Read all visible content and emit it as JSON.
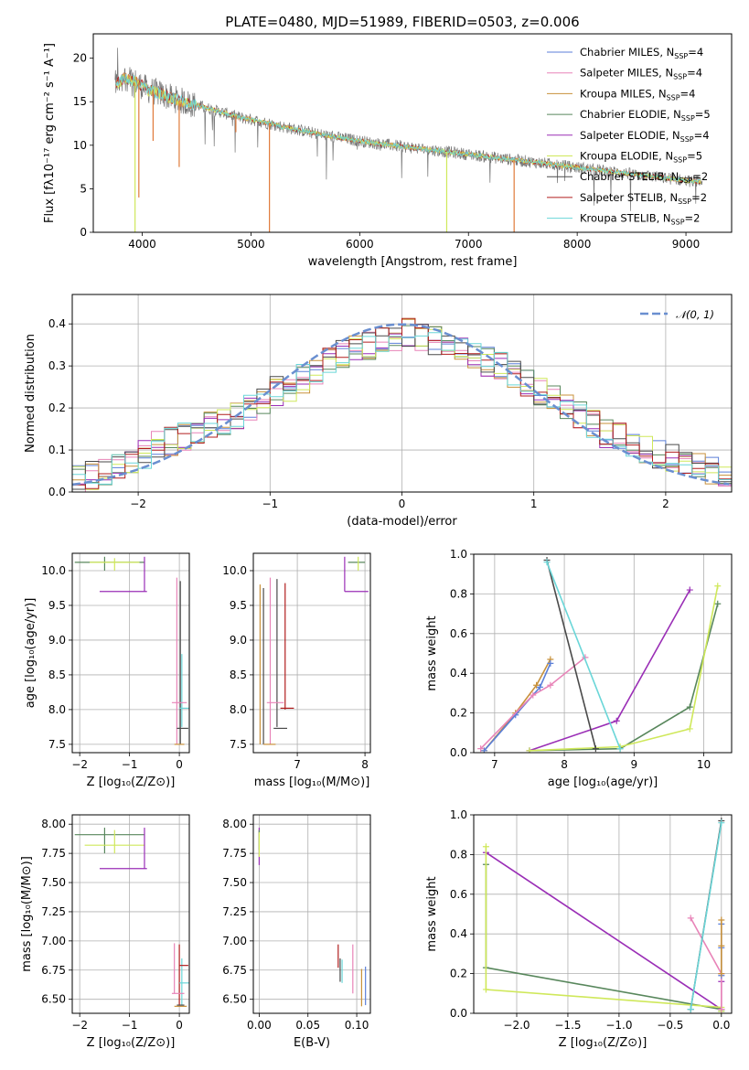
{
  "colors": {
    "Chabrier MILES": "#5b7fd8",
    "Salpeter MILES": "#e884b8",
    "Kroupa MILES": "#c8913a",
    "Chabrier ELODIE": "#58875c",
    "Salpeter ELODIE": "#9a2eb6",
    "Kroupa ELODIE": "#cfe85a",
    "Chabrier STELIB": "#4a4a4a",
    "Salpeter STELIB": "#b01e1e",
    "Kroupa STELIB": "#6ad6d8",
    "normal": "#6a8fd0",
    "gray_spec": "#777777",
    "orange_spec": "#e07a3a"
  },
  "chart_data": [
    {
      "id": "spectrum",
      "type": "line",
      "title": "PLATE=0480, MJD=51989, FIBERID=0503, z=0.006",
      "xlabel": "wavelength [Angstrom, rest frame]",
      "ylabel": "Flux [fλ10⁻¹⁷ erg cm⁻² s⁻¹ A⁻¹]",
      "xlim": [
        3550,
        9420
      ],
      "ylim": [
        0,
        22.8
      ],
      "xticks": [
        4000,
        5000,
        6000,
        7000,
        8000,
        9000
      ],
      "yticks": [
        0,
        5,
        10,
        15,
        20
      ],
      "grid": false,
      "legend_position": "top-right",
      "legend": [
        {
          "model": "Chabrier MILES",
          "label": "Chabrier MILES, N",
          "sub": "SSP",
          "tail": "=4"
        },
        {
          "model": "Salpeter MILES",
          "label": "Salpeter MILES, N",
          "sub": "SSP",
          "tail": "=4"
        },
        {
          "model": "Kroupa MILES",
          "label": "Kroupa MILES, N",
          "sub": "SSP",
          "tail": "=4"
        },
        {
          "model": "Chabrier ELODIE",
          "label": "Chabrier ELODIE, N",
          "sub": "SSP",
          "tail": "=5"
        },
        {
          "model": "Salpeter ELODIE",
          "label": "Salpeter ELODIE, N",
          "sub": "SSP",
          "tail": "=4"
        },
        {
          "model": "Kroupa ELODIE",
          "label": "Kroupa ELODIE, N",
          "sub": "SSP",
          "tail": "=5"
        },
        {
          "model": "Chabrier STELIB",
          "label": "Chabrier STELIB, N",
          "sub": "SSP",
          "tail": "=2"
        },
        {
          "model": "Salpeter STELIB",
          "label": "Salpeter STELIB, N",
          "sub": "SSP",
          "tail": "=2"
        },
        {
          "model": "Kroupa STELIB",
          "label": "Kroupa STELIB, N",
          "sub": "SSP",
          "tail": "=2"
        }
      ],
      "continuum": [
        [
          3750,
          17.0
        ],
        [
          3850,
          17.8
        ],
        [
          3950,
          17.2
        ],
        [
          4050,
          16.4
        ],
        [
          4150,
          16.0
        ],
        [
          4300,
          15.3
        ],
        [
          4500,
          14.6
        ],
        [
          4700,
          13.9
        ],
        [
          4900,
          13.2
        ],
        [
          5100,
          12.7
        ],
        [
          5300,
          12.1
        ],
        [
          5500,
          11.6
        ],
        [
          5700,
          11.1
        ],
        [
          5900,
          10.7
        ],
        [
          6100,
          10.3
        ],
        [
          6300,
          10.0
        ],
        [
          6500,
          9.7
        ],
        [
          6700,
          9.4
        ],
        [
          6900,
          9.1
        ],
        [
          7100,
          8.8
        ],
        [
          7300,
          8.5
        ],
        [
          7500,
          8.2
        ],
        [
          7700,
          7.9
        ],
        [
          7900,
          7.6
        ],
        [
          8100,
          7.3
        ],
        [
          8300,
          7.0
        ],
        [
          8500,
          6.7
        ],
        [
          8700,
          6.4
        ],
        [
          8900,
          6.1
        ],
        [
          9100,
          5.8
        ]
      ],
      "absorption_dips": [
        [
          3934,
          0.0
        ],
        [
          3969,
          4.0
        ],
        [
          4340,
          7.5
        ],
        [
          5170,
          0.0
        ],
        [
          6800,
          0.0
        ],
        [
          7420,
          0.0
        ],
        [
          4100,
          10.5
        ],
        [
          4861,
          11.5
        ]
      ]
    },
    {
      "id": "residuals",
      "type": "histogram",
      "xlabel": "(data-model)/error",
      "ylabel": "Normed distribution",
      "xlim": [
        -2.5,
        2.5
      ],
      "ylim": [
        0,
        0.47
      ],
      "xticks": [
        -2,
        -1,
        0,
        1,
        2
      ],
      "yticks": [
        0.0,
        0.1,
        0.2,
        0.3,
        0.4
      ],
      "grid": true,
      "legend_position": "top-right",
      "legend": [
        {
          "label": "𝒩(0, 1)",
          "style": "dashed"
        }
      ],
      "bin_width": 0.1,
      "bin_start": -2.5,
      "base_values": [
        0.03,
        0.04,
        0.05,
        0.06,
        0.07,
        0.09,
        0.11,
        0.12,
        0.13,
        0.14,
        0.16,
        0.17,
        0.18,
        0.2,
        0.22,
        0.24,
        0.25,
        0.27,
        0.29,
        0.31,
        0.33,
        0.34,
        0.35,
        0.36,
        0.37,
        0.38,
        0.37,
        0.36,
        0.35,
        0.34,
        0.33,
        0.31,
        0.3,
        0.28,
        0.26,
        0.24,
        0.22,
        0.2,
        0.18,
        0.16,
        0.14,
        0.13,
        0.11,
        0.1,
        0.09,
        0.08,
        0.07,
        0.06,
        0.05,
        0.04
      ]
    },
    {
      "id": "age-vs-Z",
      "type": "errorbar",
      "xlabel": "Z [log₁₀(Z/Z⊙)]",
      "ylabel": "age  [log₁₀(age/yr)]",
      "xlim": [
        -2.15,
        0.2
      ],
      "ylim": [
        7.38,
        10.25
      ],
      "xticks": [
        -2,
        -1,
        0
      ],
      "yticks": [
        7.5,
        8.0,
        8.5,
        9.0,
        9.5,
        10.0
      ],
      "grid": true
    },
    {
      "id": "age-vs-mass",
      "type": "errorbar",
      "xlabel": "mass [log₁₀(M/M⊙)]",
      "xlim": [
        6.35,
        8.08
      ],
      "ylim": [
        7.38,
        10.25
      ],
      "xticks": [
        7,
        8
      ],
      "yticks": [
        7.5,
        8.0,
        8.5,
        9.0,
        9.5,
        10.0
      ],
      "grid": true
    },
    {
      "id": "weight-vs-age",
      "type": "line",
      "xlabel": "age  [log₁₀(age/yr)]",
      "ylabel": "mass weight",
      "xlim": [
        6.7,
        10.4
      ],
      "ylim": [
        0,
        1.0
      ],
      "xticks": [
        7,
        8,
        9,
        10
      ],
      "yticks": [
        0.0,
        0.2,
        0.4,
        0.6,
        0.8,
        1.0
      ],
      "grid": true,
      "series": [
        {
          "model": "Kroupa MILES",
          "x": [
            6.85,
            7.3,
            7.6,
            7.8
          ],
          "y": [
            0.01,
            0.2,
            0.34,
            0.47
          ]
        },
        {
          "model": "Chabrier MILES",
          "x": [
            6.85,
            7.3,
            7.65,
            7.8
          ],
          "y": [
            0.01,
            0.19,
            0.33,
            0.45
          ]
        },
        {
          "model": "Salpeter MILES",
          "x": [
            6.8,
            7.55,
            7.8,
            8.3
          ],
          "y": [
            0.02,
            0.29,
            0.34,
            0.48
          ]
        },
        {
          "model": "Chabrier ELODIE",
          "x": [
            7.5,
            8.8,
            9.8,
            10.2
          ],
          "y": [
            0.01,
            0.02,
            0.23,
            0.75
          ]
        },
        {
          "model": "Salpeter ELODIE",
          "x": [
            7.5,
            8.75,
            9.8
          ],
          "y": [
            0.01,
            0.16,
            0.82
          ]
        },
        {
          "model": "Kroupa ELODIE",
          "x": [
            7.5,
            8.8,
            9.8,
            10.2
          ],
          "y": [
            0.01,
            0.03,
            0.12,
            0.84
          ]
        },
        {
          "model": "Chabrier STELIB",
          "x": [
            7.75,
            8.45
          ],
          "y": [
            0.97,
            0.02
          ]
        },
        {
          "model": "Kroupa STELIB",
          "x": [
            7.75,
            8.8
          ],
          "y": [
            0.96,
            0.02
          ]
        }
      ]
    },
    {
      "id": "mass-vs-Z",
      "type": "errorbar",
      "xlabel": "Z [log₁₀(Z/Z⊙)]",
      "ylabel": "mass [log₁₀(M/M⊙)]",
      "xlim": [
        -2.15,
        0.2
      ],
      "ylim": [
        6.38,
        8.08
      ],
      "xticks": [
        -2,
        -1,
        0
      ],
      "yticks": [
        6.5,
        6.75,
        7.0,
        7.25,
        7.5,
        7.75,
        8.0
      ],
      "grid": true
    },
    {
      "id": "mass-vs-ebv",
      "type": "errorbar",
      "xlabel": "E(B-V)",
      "xlim": [
        -0.006,
        0.114
      ],
      "ylim": [
        6.38,
        8.08
      ],
      "xticks": [
        0.0,
        0.05,
        0.1
      ],
      "yticks": [
        6.5,
        6.75,
        7.0,
        7.25,
        7.5,
        7.75,
        8.0
      ],
      "grid": true
    },
    {
      "id": "weight-vs-Z",
      "type": "line",
      "xlabel": "Z [log₁₀(Z/Z⊙)]",
      "ylabel": "mass weight",
      "xlim": [
        -2.42,
        0.1
      ],
      "ylim": [
        0,
        1.0
      ],
      "xticks": [
        -2.0,
        -1.5,
        -1.0,
        -0.5,
        0.0
      ],
      "yticks": [
        0.0,
        0.2,
        0.4,
        0.6,
        0.8,
        1.0
      ],
      "grid": true,
      "series": [
        {
          "model": "Salpeter ELODIE",
          "x": [
            -2.3,
            0.0,
            0.0
          ],
          "y": [
            0.81,
            0.02,
            0.16
          ]
        },
        {
          "model": "Chabrier ELODIE",
          "x": [
            -2.3,
            -2.3,
            0.0,
            0.0
          ],
          "y": [
            0.75,
            0.23,
            0.02,
            0.01
          ]
        },
        {
          "model": "Kroupa ELODIE",
          "x": [
            -2.3,
            -2.3,
            0.0,
            0.0
          ],
          "y": [
            0.84,
            0.12,
            0.03,
            0.01
          ]
        },
        {
          "model": "Salpeter MILES",
          "x": [
            -0.3,
            0.0,
            0.0
          ],
          "y": [
            0.48,
            0.2,
            0.02
          ]
        },
        {
          "model": "Chabrier STELIB",
          "x": [
            -0.3,
            0.0
          ],
          "y": [
            0.02,
            0.97
          ]
        },
        {
          "model": "Kroupa STELIB",
          "x": [
            -0.3,
            0.0
          ],
          "y": [
            0.02,
            0.96
          ]
        },
        {
          "model": "Chabrier MILES",
          "x": [
            0.0,
            0.0,
            0.0
          ],
          "y": [
            0.45,
            0.33,
            0.19
          ]
        },
        {
          "model": "Kroupa MILES",
          "x": [
            0.0,
            0.0,
            0.0
          ],
          "y": [
            0.47,
            0.34,
            0.2
          ]
        }
      ]
    }
  ]
}
